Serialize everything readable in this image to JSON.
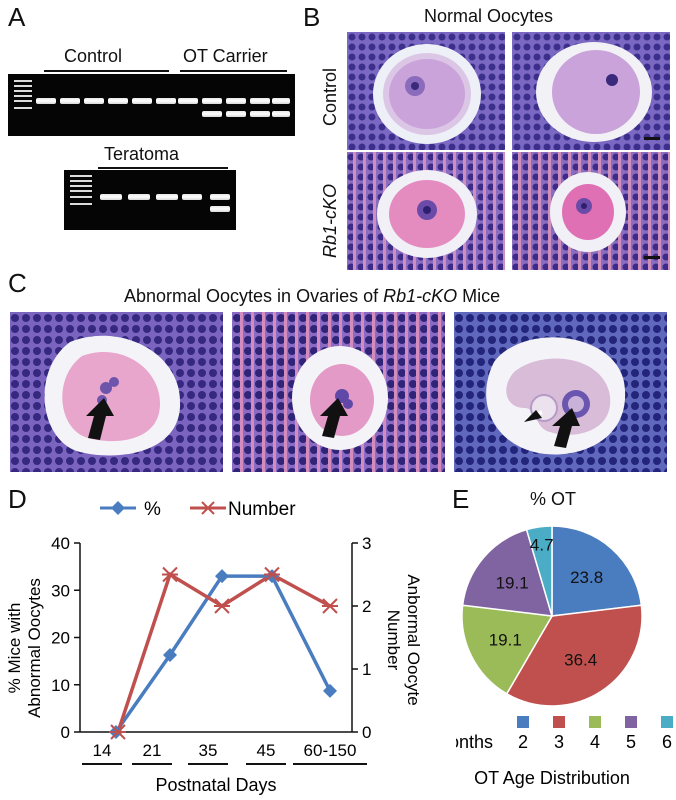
{
  "panelA": {
    "label": "A",
    "control_label": "Control",
    "carrier_label": "OT Carrier",
    "teratoma_label": "Teratoma"
  },
  "panelB": {
    "label": "B",
    "title": "Normal Oocytes",
    "row1_label": "Control",
    "row2_label": "Rb1-cKO"
  },
  "panelC": {
    "label": "C",
    "title_prefix": "Abnormal Oocytes in Ovaries of ",
    "title_italic": "Rb1-cKO",
    "title_suffix": " Mice"
  },
  "panelD": {
    "label": "D",
    "xlabel": "Postnatal Days",
    "ylabel_left_line1": "% Mice with",
    "ylabel_left_line2": "Abnormal Oocytes",
    "ylabel_right_line1": "Anbormal Oocyte",
    "ylabel_right_line2": "Number"
  },
  "panelE": {
    "label": "E",
    "title": "% OT",
    "legend_prefix": "Months",
    "footer": "OT Age Distribution"
  },
  "colors": {
    "blue": "#4a7dc0",
    "red": "#c0504d",
    "green": "#9bbb59",
    "purple": "#8064a2",
    "teal": "#4bacc6",
    "stain_purple": "#5a4aa8",
    "stain_pink": "#e6a6c6"
  },
  "chart_data": [
    {
      "type": "line",
      "categories": [
        "14",
        "21",
        "35",
        "45",
        "60-150"
      ],
      "series": [
        {
          "name": "%",
          "axis": "left",
          "values": [
            0,
            16.3,
            33,
            33,
            8.7
          ],
          "color": "#4a7dc0",
          "marker": "diamond"
        },
        {
          "name": "Number",
          "axis": "right",
          "values": [
            0,
            2.5,
            2.0,
            2.5,
            2.0
          ],
          "color": "#c0504d",
          "marker": "asterisk"
        }
      ],
      "yticks_left": [
        "0",
        "10",
        "20",
        "30",
        "40"
      ],
      "yticks_right": [
        "0",
        "1",
        "2",
        "3"
      ],
      "ylim_left": [
        0,
        40
      ],
      "ylim_right": [
        0,
        3
      ],
      "legend_position": "top"
    },
    {
      "type": "pie",
      "title": "% OT",
      "slices": [
        {
          "label": "2",
          "value": 23.8,
          "color": "#4a7dc0"
        },
        {
          "label": "3",
          "value": 36.4,
          "color": "#c0504d"
        },
        {
          "label": "4",
          "value": 19.1,
          "color": "#9bbb59"
        },
        {
          "label": "5",
          "value": 19.1,
          "color": "#8064a2"
        },
        {
          "label": "6",
          "value": 4.7,
          "color": "#4bacc6"
        }
      ]
    }
  ]
}
